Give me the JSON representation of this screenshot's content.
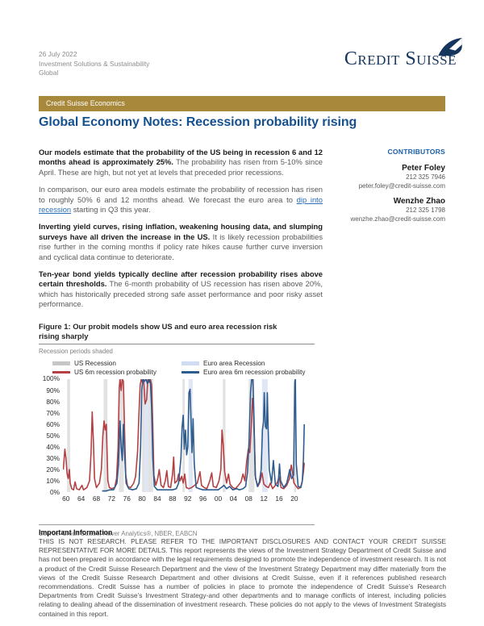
{
  "meta": {
    "date": "26 July 2022",
    "department": "Investment Solutions & Sustainability",
    "region": "Global"
  },
  "logo": {
    "text": "Credit Suisse"
  },
  "banner": {
    "label": "Credit Suisse Economics"
  },
  "title": "Global Economy Notes: Recession probability rising",
  "paragraphs": [
    {
      "bold": "Our models estimate that the probability of the US being in recession 6 and 12 months ahead is approximately 25%.",
      "rest": "The probability has risen from 5-10% since April. These are high, but not yet at levels that preceded prior recessions."
    },
    {
      "pre": "In comparison, our euro area models estimate the probability of recession has risen to roughly 50% 6 and 12 months ahead. We forecast the euro area to",
      "link": "dip into recession",
      "post": "starting in Q3 this year."
    },
    {
      "bold": "Inverting yield curves, rising inflation, weakening housing data, and slumping surveys have all driven the increase in the US.",
      "rest": "It is likely recession probabilities rise further in the coming months if policy rate hikes cause further curve inversion and cyclical data continue to deteriorate."
    },
    {
      "bold": "Ten-year bond yields typically decline after recession probability rises above certain thresholds.",
      "rest": "The 6-month probability of US recession has risen above 20%, which has historically preceded strong safe asset performance and poor risky asset performance."
    }
  ],
  "contributors": {
    "heading": "CONTRIBUTORS",
    "people": [
      {
        "name": "Peter Foley",
        "phone": "212 325 7946",
        "email": "peter.foley@credit-suisse.com"
      },
      {
        "name": "Wenzhe Zhao",
        "phone": "212 325 1798",
        "email": "wenzhe.zhao@credit-suisse.com"
      }
    ]
  },
  "figure": {
    "title_line1": "Figure 1: Our probit models show US and euro area recession risk",
    "title_line2": "rising sharply",
    "subtitle": "Recession periods shaded",
    "source": "Source: Credit Suisse, Haver Analytics®, NBER, EABCN"
  },
  "brand": {
    "gold": "#a8893c",
    "navy": "#16355d",
    "title_blue": "#15518f",
    "contrib_blue": "#1b5fa9",
    "link_blue": "#2a6eb8"
  },
  "chart_data": {
    "type": "line",
    "title": "Figure 1: Our probit models show US and euro area recession risk rising sharply",
    "note": "Recession periods shaded",
    "xlabel": "",
    "ylabel": "",
    "ylim": [
      0,
      100
    ],
    "x_range": [
      1959.2,
      2023.2
    ],
    "grid": false,
    "legend_position": "top",
    "yticks": [
      "100%",
      "90%",
      "80%",
      "70%",
      "60%",
      "50%",
      "40%",
      "30%",
      "20%",
      "10%",
      "0%"
    ],
    "xticks": [
      "60",
      "64",
      "68",
      "72",
      "76",
      "80",
      "84",
      "88",
      "92",
      "96",
      "00",
      "04",
      "08",
      "12",
      "16",
      "20"
    ],
    "xtick_years": [
      1960,
      1964,
      1968,
      1972,
      1976,
      1980,
      1984,
      1988,
      1992,
      1996,
      2000,
      2004,
      2008,
      2012,
      2016,
      2020
    ],
    "colors": {
      "us_band": "#e2e2e2",
      "euro_band": "#dfe7f5"
    },
    "legend": [
      {
        "label": "US Recession",
        "type": "band",
        "color": "#c6c6c6"
      },
      {
        "label": "US 6m recession probability",
        "type": "line",
        "color": "#b54043"
      },
      {
        "label": "Euro area Recession",
        "type": "band",
        "color": "#cfdcf2"
      },
      {
        "label": "Euro area 6m recession probability",
        "type": "line",
        "color": "#2e5c8e"
      }
    ],
    "us_recessions": [
      [
        1960.3,
        1961.1
      ],
      [
        1969.9,
        1970.9
      ],
      [
        1973.9,
        1975.2
      ],
      [
        1980.0,
        1980.6
      ],
      [
        1981.6,
        1982.9
      ],
      [
        1990.6,
        1991.2
      ],
      [
        2001.2,
        2001.9
      ],
      [
        2008.0,
        2009.5
      ],
      [
        2020.05,
        2020.45
      ]
    ],
    "euro_recessions": [
      [
        1974.2,
        1975.2
      ],
      [
        1980.2,
        1982.7
      ],
      [
        1992.2,
        1993.3
      ],
      [
        2008.2,
        2009.4
      ],
      [
        2011.5,
        2013.0
      ],
      [
        2019.95,
        2020.5
      ]
    ],
    "series": [
      {
        "name": "US 6m recession probability",
        "key": "us-probability-line",
        "color": "#b54043",
        "points": [
          [
            1959.3,
            20
          ],
          [
            1959.7,
            38
          ],
          [
            1960.0,
            30
          ],
          [
            1960.3,
            16
          ],
          [
            1960.6,
            12
          ],
          [
            1960.9,
            20
          ],
          [
            1961.1,
            8
          ],
          [
            1961.5,
            3
          ],
          [
            1962.0,
            2
          ],
          [
            1962.4,
            9
          ],
          [
            1962.8,
            3
          ],
          [
            1963.5,
            2
          ],
          [
            1964.2,
            6
          ],
          [
            1964.6,
            2
          ],
          [
            1965.5,
            4
          ],
          [
            1966.2,
            10
          ],
          [
            1966.6,
            35
          ],
          [
            1966.9,
            71
          ],
          [
            1967.2,
            45
          ],
          [
            1967.5,
            12
          ],
          [
            1968.0,
            4
          ],
          [
            1968.8,
            8
          ],
          [
            1969.3,
            20
          ],
          [
            1969.7,
            50
          ],
          [
            1970.0,
            63
          ],
          [
            1970.3,
            55
          ],
          [
            1970.6,
            60
          ],
          [
            1971.0,
            10
          ],
          [
            1971.4,
            4
          ],
          [
            1972.0,
            3
          ],
          [
            1972.8,
            4
          ],
          [
            1973.3,
            12
          ],
          [
            1973.7,
            40
          ],
          [
            1974.0,
            92
          ],
          [
            1974.2,
            100
          ],
          [
            1974.5,
            90
          ],
          [
            1974.8,
            100
          ],
          [
            1975.1,
            98
          ],
          [
            1975.4,
            55
          ],
          [
            1975.7,
            15
          ],
          [
            1976.2,
            5
          ],
          [
            1977.0,
            4
          ],
          [
            1977.8,
            8
          ],
          [
            1978.3,
            14
          ],
          [
            1978.8,
            35
          ],
          [
            1979.2,
            72
          ],
          [
            1979.5,
            95
          ],
          [
            1979.8,
            100
          ],
          [
            1980.1,
            97
          ],
          [
            1980.4,
            100
          ],
          [
            1980.8,
            78
          ],
          [
            1981.2,
            82
          ],
          [
            1981.5,
            100
          ],
          [
            1981.9,
            97
          ],
          [
            1982.2,
            100
          ],
          [
            1982.5,
            95
          ],
          [
            1982.8,
            60
          ],
          [
            1983.1,
            15
          ],
          [
            1983.6,
            6
          ],
          [
            1984.1,
            12
          ],
          [
            1984.5,
            20
          ],
          [
            1985.0,
            6
          ],
          [
            1985.6,
            4
          ],
          [
            1986.1,
            10
          ],
          [
            1986.5,
            19
          ],
          [
            1986.9,
            5
          ],
          [
            1987.5,
            4
          ],
          [
            1988.0,
            16
          ],
          [
            1988.3,
            31
          ],
          [
            1988.6,
            8
          ],
          [
            1989.2,
            10
          ],
          [
            1989.6,
            16
          ],
          [
            1990.0,
            10
          ],
          [
            1990.4,
            14
          ],
          [
            1990.8,
            8
          ],
          [
            1991.2,
            16
          ],
          [
            1991.6,
            4
          ],
          [
            1992.3,
            3
          ],
          [
            1993.0,
            4
          ],
          [
            1993.8,
            6
          ],
          [
            1994.5,
            8
          ],
          [
            1995.2,
            18
          ],
          [
            1995.6,
            6
          ],
          [
            1996.3,
            4
          ],
          [
            1997.0,
            3
          ],
          [
            1997.8,
            10
          ],
          [
            1998.3,
            17
          ],
          [
            1998.7,
            5
          ],
          [
            1999.5,
            4
          ],
          [
            2000.2,
            10
          ],
          [
            2000.7,
            20
          ],
          [
            2001.0,
            55
          ],
          [
            2001.3,
            42
          ],
          [
            2001.7,
            18
          ],
          [
            2002.2,
            8
          ],
          [
            2002.7,
            16
          ],
          [
            2003.1,
            7
          ],
          [
            2003.8,
            4
          ],
          [
            2004.5,
            3
          ],
          [
            2005.3,
            6
          ],
          [
            2006.0,
            9
          ],
          [
            2006.5,
            16
          ],
          [
            2007.0,
            10
          ],
          [
            2007.5,
            28
          ],
          [
            2007.9,
            38
          ],
          [
            2008.3,
            35
          ],
          [
            2008.7,
            60
          ],
          [
            2009.0,
            83
          ],
          [
            2009.2,
            78
          ],
          [
            2009.5,
            45
          ],
          [
            2009.8,
            12
          ],
          [
            2010.4,
            5
          ],
          [
            2011.0,
            9
          ],
          [
            2011.5,
            17
          ],
          [
            2012.0,
            7
          ],
          [
            2012.6,
            5
          ],
          [
            2013.2,
            4
          ],
          [
            2013.7,
            8
          ],
          [
            2014.3,
            3
          ],
          [
            2015.0,
            6
          ],
          [
            2015.6,
            9
          ],
          [
            2016.0,
            14
          ],
          [
            2016.5,
            4
          ],
          [
            2017.2,
            3
          ],
          [
            2018.0,
            6
          ],
          [
            2018.7,
            12
          ],
          [
            2019.2,
            24
          ],
          [
            2019.5,
            18
          ],
          [
            2019.9,
            8
          ],
          [
            2020.3,
            6
          ],
          [
            2021.0,
            3
          ],
          [
            2021.6,
            4
          ],
          [
            2022.0,
            8
          ],
          [
            2022.4,
            18
          ],
          [
            2022.6,
            26
          ]
        ]
      },
      {
        "name": "Euro area 6m recession probability",
        "key": "euro-probability-line",
        "color": "#2e5c8e",
        "points": [
          [
            1969.5,
            1
          ],
          [
            1970.5,
            1
          ],
          [
            1971.5,
            2
          ],
          [
            1972.5,
            2
          ],
          [
            1973.4,
            8
          ],
          [
            1973.8,
            25
          ],
          [
            1974.2,
            63
          ],
          [
            1974.5,
            40
          ],
          [
            1974.8,
            28
          ],
          [
            1975.1,
            60
          ],
          [
            1975.4,
            35
          ],
          [
            1975.8,
            8
          ],
          [
            1976.5,
            3
          ],
          [
            1977.5,
            2
          ],
          [
            1978.5,
            3
          ],
          [
            1979.2,
            8
          ],
          [
            1979.6,
            40
          ],
          [
            1979.9,
            90
          ],
          [
            1980.2,
            100
          ],
          [
            1980.6,
            98
          ],
          [
            1981.0,
            100
          ],
          [
            1981.4,
            96
          ],
          [
            1981.8,
            100
          ],
          [
            1982.2,
            97
          ],
          [
            1982.5,
            75
          ],
          [
            1982.8,
            30
          ],
          [
            1983.2,
            5
          ],
          [
            1984.0,
            2
          ],
          [
            1985.0,
            2
          ],
          [
            1986.0,
            2
          ],
          [
            1987.0,
            2
          ],
          [
            1988.0,
            2
          ],
          [
            1989.0,
            3
          ],
          [
            1989.6,
            8
          ],
          [
            1990.2,
            30
          ],
          [
            1990.5,
            57
          ],
          [
            1990.8,
            68
          ],
          [
            1991.1,
            38
          ],
          [
            1991.4,
            55
          ],
          [
            1991.7,
            33
          ],
          [
            1992.0,
            40
          ],
          [
            1992.3,
            88
          ],
          [
            1992.6,
            91
          ],
          [
            1992.9,
            60
          ],
          [
            1993.1,
            35
          ],
          [
            1993.4,
            65
          ],
          [
            1993.7,
            25
          ],
          [
            1994.2,
            4
          ],
          [
            1995.0,
            3
          ],
          [
            1996.0,
            2
          ],
          [
            1997.0,
            2
          ],
          [
            1998.0,
            2
          ],
          [
            1999.0,
            2
          ],
          [
            2000.0,
            2
          ],
          [
            2000.8,
            4
          ],
          [
            2001.5,
            6
          ],
          [
            2002.2,
            3
          ],
          [
            2003.0,
            5
          ],
          [
            2003.8,
            2
          ],
          [
            2004.8,
            3
          ],
          [
            2005.6,
            2
          ],
          [
            2006.5,
            3
          ],
          [
            2007.2,
            5
          ],
          [
            2007.7,
            18
          ],
          [
            2008.1,
            45
          ],
          [
            2008.5,
            88
          ],
          [
            2008.8,
            100
          ],
          [
            2009.1,
            100
          ],
          [
            2009.4,
            65
          ],
          [
            2009.7,
            15
          ],
          [
            2010.3,
            5
          ],
          [
            2010.8,
            9
          ],
          [
            2011.3,
            20
          ],
          [
            2011.6,
            55
          ],
          [
            2011.9,
            62
          ],
          [
            2012.1,
            88
          ],
          [
            2012.4,
            58
          ],
          [
            2012.7,
            56
          ],
          [
            2012.9,
            88
          ],
          [
            2013.1,
            60
          ],
          [
            2013.4,
            20
          ],
          [
            2014.0,
            8
          ],
          [
            2014.5,
            28
          ],
          [
            2015.0,
            7
          ],
          [
            2015.7,
            5
          ],
          [
            2016.1,
            25
          ],
          [
            2016.4,
            10
          ],
          [
            2017.2,
            4
          ],
          [
            2018.0,
            8
          ],
          [
            2018.8,
            20
          ],
          [
            2019.3,
            12
          ],
          [
            2019.8,
            15
          ],
          [
            2020.1,
            97
          ],
          [
            2020.25,
            100
          ],
          [
            2020.5,
            25
          ],
          [
            2021.0,
            5
          ],
          [
            2021.7,
            4
          ],
          [
            2022.1,
            10
          ],
          [
            2022.4,
            30
          ],
          [
            2022.6,
            60
          ]
        ]
      }
    ]
  },
  "disclaimer": {
    "heading": "Important Information",
    "body": "THIS IS NOT RESEARCH. PLEASE REFER TO THE IMPORTANT DISCLOSURES AND CONTACT YOUR CREDIT SUISSE REPRESENTATIVE FOR MORE DETAILS. This report represents the views of the Investment Strategy Department of Credit Suisse and has not been prepared in accordance with the legal requirements designed to promote the independence of investment research. It is not a product of the Credit Suisse Research Department and the view of the Investment Strategy Department may differ materially from the views of the Credit Suisse Research Department and other divisions at Credit Suisse, even if it references published research recommendations. Credit Suisse has a number of policies in place to promote the independence of Credit Suisse’s Research Departments from Credit Suisse’s Investment Strategy-and other departments and to manage conflicts of interest, including policies relating to dealing ahead of the dissemination of investment research. These policies do not apply to the views of Investment Strategists contained in this report."
  }
}
